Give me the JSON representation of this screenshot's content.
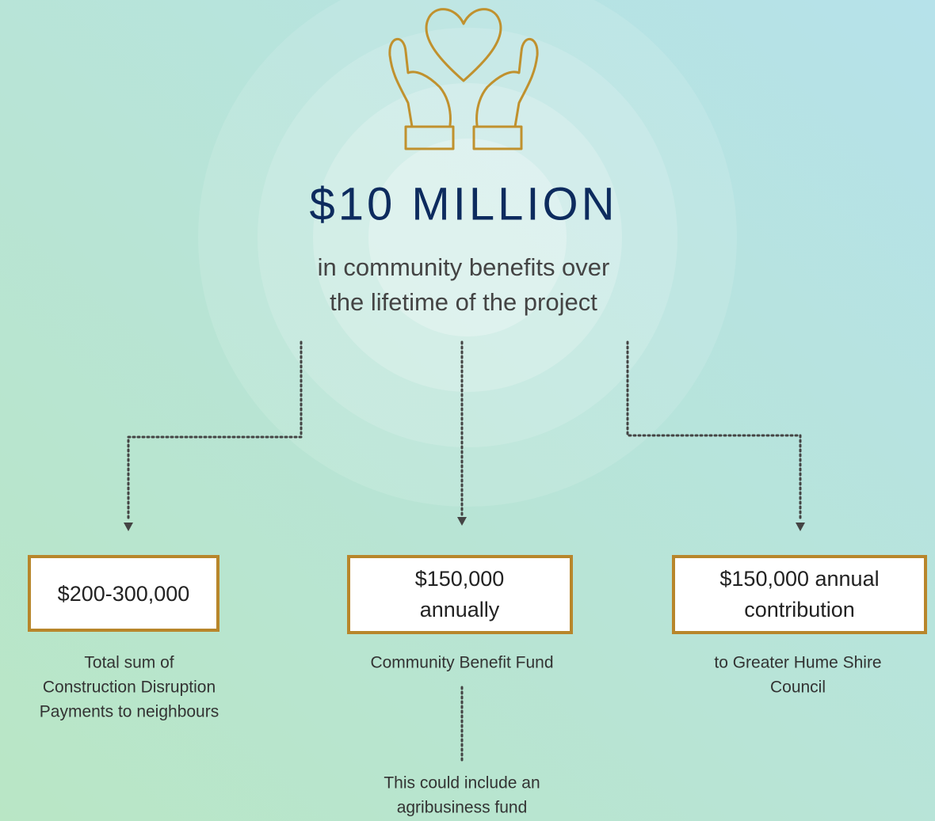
{
  "headline": "$10 MILLION",
  "subtitle": [
    "in community benefits over",
    "the lifetime of the project"
  ],
  "nodes": [
    {
      "box": [
        "$200-300,000"
      ],
      "description": [
        "Total sum of",
        "Construction Disruption",
        "Payments to neighbours"
      ]
    },
    {
      "box": [
        "$150,000",
        "annually"
      ],
      "description": [
        "Community Benefit Fund"
      ]
    },
    {
      "box": [
        "$150,000 annual",
        "contribution"
      ],
      "description": [
        "to Greater Hume Shire",
        "Council"
      ]
    }
  ],
  "note": [
    "This could include an",
    "agribusiness fund"
  ]
}
